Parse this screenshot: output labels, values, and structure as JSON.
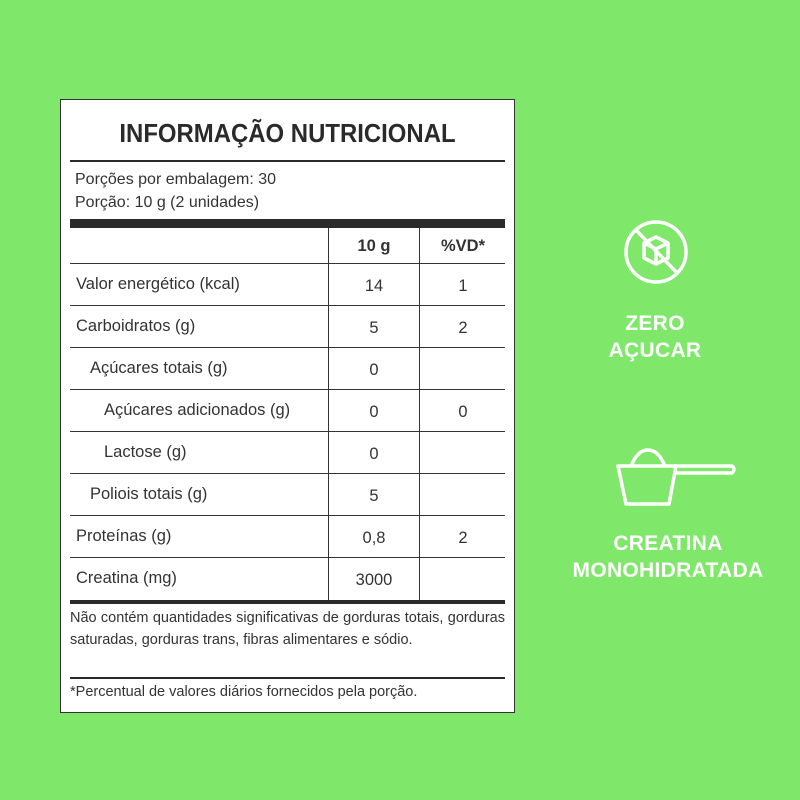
{
  "background_color": "#7fe86a",
  "label": {
    "title": "INFORMAÇÃO NUTRICIONAL",
    "servings_per_package": "Porções por embalagem: 30",
    "serving_size": "Porção: 10 g (2 unidades)",
    "columns": [
      "",
      "10 g",
      "%VD*"
    ],
    "rows": [
      {
        "name": "Valor energético (kcal)",
        "amount": "14",
        "dv": "1",
        "indent": 0
      },
      {
        "name": "Carboidratos (g)",
        "amount": "5",
        "dv": "2",
        "indent": 0
      },
      {
        "name": "Açúcares totais (g)",
        "amount": "0",
        "dv": "",
        "indent": 1
      },
      {
        "name": "Açúcares adicionados (g)",
        "amount": "0",
        "dv": "0",
        "indent": 2
      },
      {
        "name": "Lactose (g)",
        "amount": "0",
        "dv": "",
        "indent": 2
      },
      {
        "name": "Poliois totais (g)",
        "amount": "5",
        "dv": "",
        "indent": 1
      },
      {
        "name": "Proteínas (g)",
        "amount": "0,8",
        "dv": "2",
        "indent": 0
      },
      {
        "name": "Creatina (mg)",
        "amount": "3000",
        "dv": "",
        "indent": 0
      }
    ],
    "note": "Não contém quantidades significativas de gorduras totais, gorduras saturadas, gorduras trans, fibras alimentares e sódio.",
    "footnote": "*Percentual de valores diários fornecidos pela porção."
  },
  "badges": [
    {
      "icon": "no-sugar-cube-icon",
      "line1": "ZERO",
      "line2": "AÇUCAR"
    },
    {
      "icon": "measuring-scoop-icon",
      "line1": "CREATINA",
      "line2": "MONOHIDRATADA"
    }
  ]
}
